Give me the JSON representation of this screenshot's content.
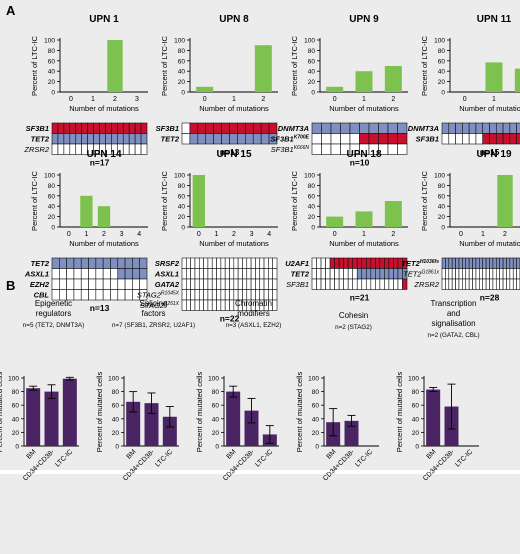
{
  "colors": {
    "bar": "#7dc24f",
    "red": "#c8102e",
    "blue": "#7f8fbf",
    "purple": "#4b2463",
    "panelBg": "#ececec",
    "grid": "#222222"
  },
  "panels": {
    "a": "A",
    "b": "B"
  },
  "common": {
    "ylabel": "Percent of LTC-IC",
    "xlabel": "Number of mutations",
    "ylabelB": "Percent of mutated cells"
  },
  "chart_data": [
    {
      "id": "upn1",
      "type": "bar",
      "title": "UPN 1",
      "categories": [
        "0",
        "1",
        "2",
        "3"
      ],
      "values": [
        0,
        0,
        100,
        0
      ],
      "ylim": [
        0,
        100
      ],
      "genes": [
        {
          "label": "SF3B1",
          "style": "bold",
          "cells": "rrrrrrrrrrrrrrrr"
        },
        {
          "label": "TET2",
          "style": "bold",
          "cells": "bbbbbbbbbbbbbbbb"
        },
        {
          "label": "ZRSR2",
          "style": "italic",
          "cells": "wwwwwwwwwwwwwwww"
        }
      ],
      "n": "n=17"
    },
    {
      "id": "upn8",
      "type": "bar",
      "title": "UPN 8",
      "categories": [
        "0",
        "1",
        "2"
      ],
      "values": [
        10,
        0,
        90
      ],
      "ylim": [
        0,
        100
      ],
      "genes": [
        {
          "label": "SF3B1",
          "style": "bold",
          "cells": "wrrrrrrrrrrr"
        },
        {
          "label": "TET2",
          "style": "bold",
          "cells": "wbbbbbbbbbbb"
        }
      ],
      "n": "n=13"
    },
    {
      "id": "upn9",
      "type": "bar",
      "title": "UPN 9",
      "categories": [
        "0",
        "1",
        "2"
      ],
      "values": [
        10,
        40,
        50
      ],
      "ylim": [
        0,
        100
      ],
      "genes": [
        {
          "label": "DNMT3A",
          "style": "bold",
          "cells": "bbbbbbbbbb"
        },
        {
          "label": "SF3B1",
          "sup": "K700E",
          "style": "bold",
          "cells": "wwwwwrrrrr"
        },
        {
          "label": "SF3B1",
          "sup": "K666N",
          "style": "italic",
          "cells": "wwwwwwwwww"
        }
      ],
      "n": "n=10"
    },
    {
      "id": "upn11",
      "type": "bar",
      "title": "UPN 11",
      "categories": [
        "0",
        "1",
        "2"
      ],
      "values": [
        0,
        57,
        45
      ],
      "ylim": [
        0,
        100
      ],
      "genes": [
        {
          "label": "DNMT3A",
          "style": "bold",
          "cells": "bbbbbbbbbbbbbb"
        },
        {
          "label": "SF3B1",
          "style": "bold",
          "cells": "wwwwwwrrrrrrrr"
        }
      ],
      "n": "n=15"
    },
    {
      "id": "upn14",
      "type": "bar",
      "title": "UPN 14",
      "categories": [
        "0",
        "1",
        "2",
        "3",
        "4"
      ],
      "values": [
        0,
        60,
        40,
        0,
        0
      ],
      "ylim": [
        0,
        100
      ],
      "genes": [
        {
          "label": "TET2",
          "style": "bold",
          "cells": "bbbbbbbbbbbbb"
        },
        {
          "label": "ASXL1",
          "style": "bold",
          "cells": "wwwwwwwwwbbbb"
        },
        {
          "label": "EZH2",
          "style": "bold",
          "cells": "wwwwwwwwwwwww"
        },
        {
          "label": "CBL",
          "style": "bold",
          "cells": "wwwwwwwwwwwww"
        }
      ],
      "n": "n=13"
    },
    {
      "id": "upn15",
      "type": "bar",
      "title": "UPN 15",
      "categories": [
        "0",
        "1",
        "2",
        "3",
        "4"
      ],
      "values": [
        100,
        0,
        0,
        0,
        0
      ],
      "ylim": [
        0,
        100
      ],
      "genes": [
        {
          "label": "SRSF2",
          "style": "bold",
          "cells": "wwwwwwwwwwwwwwwwwwwwww"
        },
        {
          "label": "ASXL1",
          "style": "bold",
          "cells": "wwwwwwwwwwwwwwwwwwwwww"
        },
        {
          "label": "GATA2",
          "style": "bold",
          "cells": "wwwwwwwwwwwwwwwwwwwwww"
        },
        {
          "label": "STAG2",
          "sup": "R1045X",
          "style": "italic",
          "cells": "wwwwwwwwwwwwwwwwwwwwww"
        },
        {
          "label": "STAG2",
          "sup": "E251X",
          "style": "italic",
          "cells": "wwwwwwwwwwwwwwwwwwwwww"
        }
      ],
      "n": "n=22"
    },
    {
      "id": "upn18",
      "type": "bar",
      "title": "UPN 18",
      "categories": [
        "0",
        "1",
        "2"
      ],
      "values": [
        20,
        30,
        50
      ],
      "ylim": [
        0,
        100
      ],
      "genes": [
        {
          "label": "U2AF1",
          "style": "bold",
          "cells": "wwwwrrrrrrrrrrrrrrrrr"
        },
        {
          "label": "TET2",
          "style": "bold",
          "cells": "wwwwwwwwwwbbbbbbbbbbb"
        },
        {
          "label": "SF3B1",
          "style": "italic",
          "cells": "wwwwwwwwwwwwwwwwwwwwr"
        }
      ],
      "n": "n=21"
    },
    {
      "id": "upn19",
      "type": "bar",
      "title": "UPN 19",
      "categories": [
        "0",
        "1",
        "2",
        "3"
      ],
      "values": [
        0,
        0,
        100,
        0
      ],
      "ylim": [
        0,
        100
      ],
      "genes": [
        {
          "label": "TET2",
          "sup": "H1036fs",
          "style": "bold",
          "cells": "bbbbbbbbbbbbbbbbbbbbbbbbbbbb"
        },
        {
          "label": "TET2",
          "sup": "G1861x",
          "style": "italic",
          "cells": "wwwwwwwwwwwwwwwwwwwwwwwwwwww"
        },
        {
          "label": "ZRSR2",
          "style": "italic",
          "cells": "wwwwwwwwwwwwwwwwwwwwwwwwwwww"
        }
      ],
      "n": "n=28"
    },
    {
      "id": "epi",
      "type": "bar",
      "title": "Epigenetic regulators",
      "subtitle": "n=5 (TET2, DNMT3A)",
      "categories": [
        "BM",
        "CD34+CD38-",
        "LTC-IC"
      ],
      "values": [
        85,
        80,
        99
      ],
      "errors": [
        3,
        10,
        2
      ],
      "ylim": [
        0,
        100
      ]
    },
    {
      "id": "splice",
      "type": "bar",
      "title": "Splicing factors",
      "subtitle": "n=7 (SF3B1, ZRSR2, U2AF1)",
      "categories": [
        "BM",
        "CD34+CD38-",
        "LTC-IC"
      ],
      "values": [
        65,
        63,
        43
      ],
      "errors": [
        15,
        15,
        15
      ],
      "ylim": [
        0,
        100
      ]
    },
    {
      "id": "chrom",
      "type": "bar",
      "title": "Chromatin modifiers",
      "subtitle": "n=3 (ASXL1, EZH2)",
      "categories": [
        "BM",
        "CD34+CD38-",
        "LTC-IC"
      ],
      "values": [
        80,
        52,
        17
      ],
      "errors": [
        8,
        18,
        13
      ],
      "ylim": [
        0,
        100
      ]
    },
    {
      "id": "cohesin",
      "type": "bar",
      "title": "Cohesin",
      "subtitle": "n=2 (STAG2)",
      "categories": [
        "BM",
        "CD34+CD38-",
        "LTC-IC"
      ],
      "values": [
        35,
        37,
        0
      ],
      "errors": [
        20,
        8,
        0
      ],
      "ylim": [
        0,
        100
      ]
    },
    {
      "id": "trans",
      "type": "bar",
      "title": "Transcription and signalisation",
      "subtitle": "n=2 (GATA2, CBL)",
      "categories": [
        "BM",
        "CD34+CD38-",
        "LTC-IC"
      ],
      "values": [
        83,
        58,
        0
      ],
      "errors": [
        3,
        33,
        0
      ],
      "ylim": [
        0,
        100
      ]
    }
  ]
}
